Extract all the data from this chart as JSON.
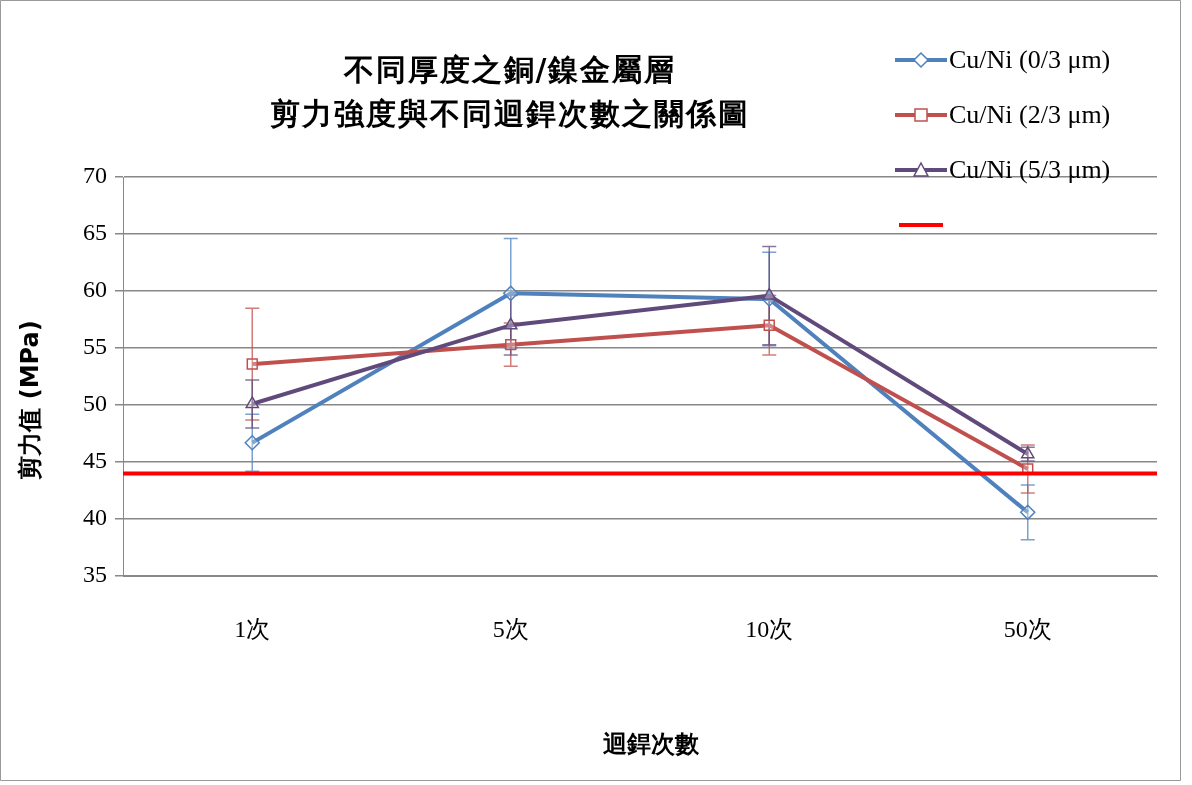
{
  "chart_data": {
    "type": "line",
    "title": "不同厚度之銅/鎳金屬層",
    "subtitle": "剪力強度與不同迴銲次數之關係圖",
    "xlabel": "迴銲次數",
    "ylabel": "剪力值 (MPa)",
    "categories": [
      "1次",
      "5次",
      "10次",
      "50次"
    ],
    "series": [
      {
        "name": "Cu/Ni (0/3 μm)",
        "color": "#4f81bd",
        "marker": "diamond",
        "values": [
          46.7,
          59.8,
          59.3,
          40.6
        ],
        "errors": [
          2.5,
          4.8,
          4.1,
          2.4
        ]
      },
      {
        "name": "Cu/Ni (2/3 μm)",
        "color": "#c0504d",
        "marker": "square",
        "values": [
          53.6,
          55.3,
          57.0,
          44.4
        ],
        "errors": [
          4.9,
          1.9,
          2.6,
          2.1
        ]
      },
      {
        "name": "Cu/Ni (5/3 μm)",
        "color": "#604a7b",
        "marker": "triangle",
        "values": [
          50.1,
          57.0,
          59.6,
          45.7
        ],
        "errors": [
          2.1,
          2.6,
          4.3,
          0.6
        ]
      }
    ],
    "ref_lines": [
      {
        "axis": "y",
        "value": 44,
        "color": "#ff0000"
      }
    ],
    "ylim": [
      35,
      70
    ],
    "yticks": [
      35,
      40,
      45,
      50,
      55,
      60,
      65,
      70
    ],
    "grid": "y",
    "legend": "top right"
  }
}
